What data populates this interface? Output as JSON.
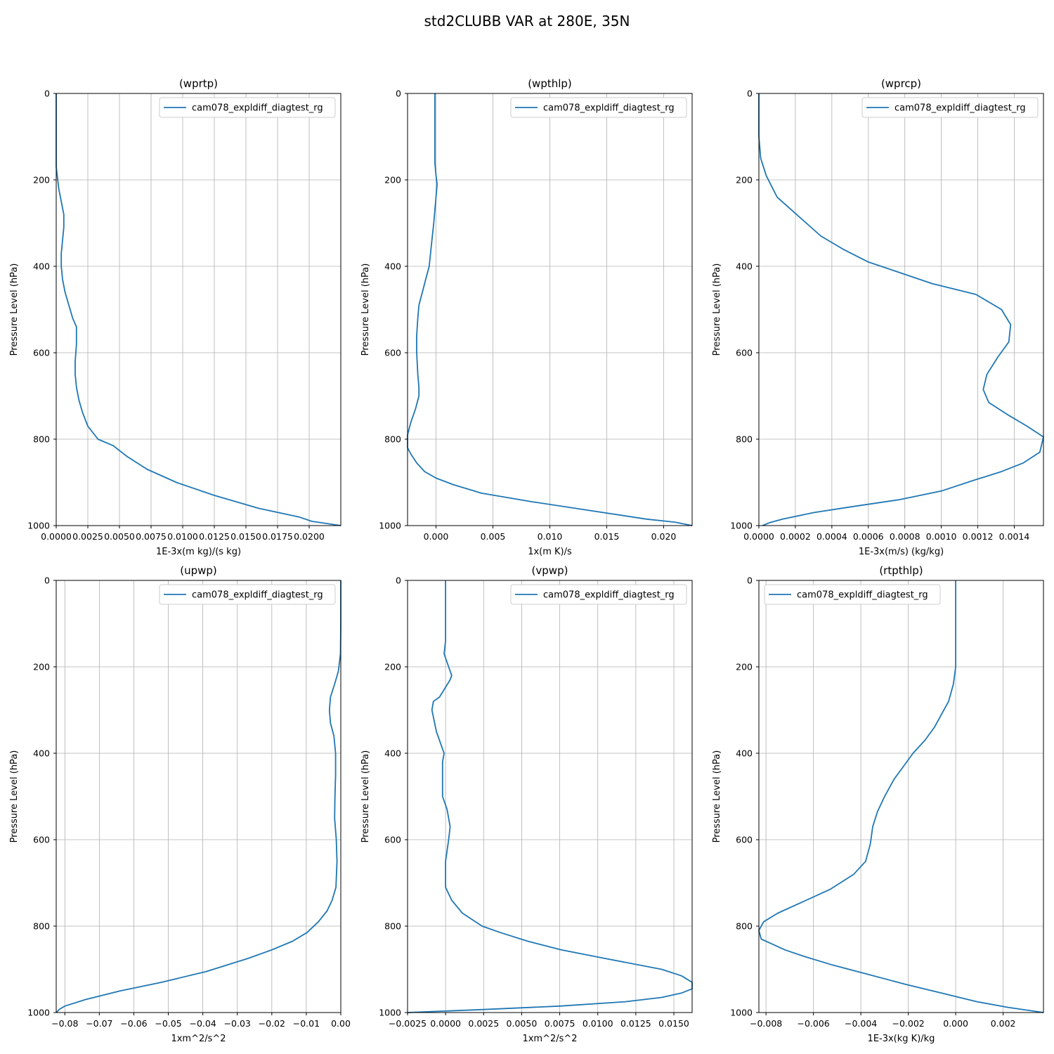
{
  "figure": {
    "title": "std2CLUBB VAR at 280E, 35N"
  },
  "colors": {
    "series": "#1f77b4",
    "grid": "#b0b0b0"
  },
  "chart_data": [
    {
      "type": "line",
      "title": "(wprtp)",
      "xlabel": "1E-3x(m kg)/(s kg)",
      "ylabel": "Pressure Level (hPa)",
      "xlim": [
        0.0,
        0.0225
      ],
      "ylim": [
        1000,
        0
      ],
      "xticks": [
        0.0,
        0.0025,
        0.005,
        0.0075,
        0.01,
        0.0125,
        0.015,
        0.0175,
        0.02
      ],
      "xtick_labels": [
        "0.0000",
        "0.0025",
        "0.0050",
        "0.0075",
        "0.0100",
        "0.0125",
        "0.0150",
        "0.0175",
        "0.0200"
      ],
      "yticks": [
        0,
        200,
        400,
        600,
        800,
        1000
      ],
      "ytick_labels": [
        "0",
        "200",
        "400",
        "600",
        "800",
        "1000"
      ],
      "grid": true,
      "legend_position": "top-right",
      "series": [
        {
          "name": "cam078_expldiff_diagtest_rg",
          "x": [
            0.0,
            0.0,
            0.0,
            0.0002,
            0.0004,
            0.0006,
            0.0006,
            0.0005,
            0.0004,
            0.0004,
            0.0005,
            0.0007,
            0.001,
            0.0013,
            0.0016,
            0.0016,
            0.0015,
            0.0015,
            0.0016,
            0.0018,
            0.0021,
            0.0025,
            0.0033,
            0.0045,
            0.0056,
            0.0072,
            0.0095,
            0.0125,
            0.016,
            0.0192,
            0.0202,
            0.0225
          ],
          "y": [
            0,
            100,
            170,
            220,
            250,
            280,
            310,
            340,
            370,
            400,
            430,
            460,
            490,
            520,
            540,
            580,
            620,
            650,
            680,
            710,
            740,
            770,
            800,
            815,
            840,
            870,
            900,
            930,
            960,
            980,
            990,
            1000
          ]
        }
      ]
    },
    {
      "type": "line",
      "title": "(wpthlp)",
      "xlabel": "1x(m K)/s",
      "ylabel": "Pressure Level (hPa)",
      "xlim": [
        -0.0025,
        0.0225
      ],
      "ylim": [
        1000,
        0
      ],
      "xticks": [
        0.0,
        0.005,
        0.01,
        0.015,
        0.02
      ],
      "xtick_labels": [
        "0.000",
        "0.005",
        "0.010",
        "0.015",
        "0.020"
      ],
      "yticks": [
        0,
        200,
        400,
        600,
        800,
        1000
      ],
      "ytick_labels": [
        "0",
        "200",
        "400",
        "600",
        "800",
        "1000"
      ],
      "grid": true,
      "legend_position": "top-right",
      "series": [
        {
          "name": "cam078_expldiff_diagtest_rg",
          "x": [
            -0.0001,
            -0.0001,
            -0.0001,
            0.0,
            0.0001,
            0.0,
            -0.0001,
            -0.0002,
            -0.0004,
            -0.0006,
            -0.0009,
            -0.0012,
            -0.0015,
            -0.0016,
            -0.0017,
            -0.0017,
            -0.0016,
            -0.0015,
            -0.0015,
            -0.0018,
            -0.0022,
            -0.0025,
            -0.0025,
            -0.0022,
            -0.0017,
            -0.001,
            0.0,
            0.0015,
            0.004,
            0.0085,
            0.0135,
            0.0185,
            0.021,
            0.0225
          ],
          "y": [
            0,
            100,
            160,
            190,
            210,
            240,
            270,
            300,
            350,
            400,
            430,
            460,
            490,
            520,
            560,
            600,
            650,
            680,
            700,
            730,
            760,
            790,
            820,
            835,
            855,
            875,
            890,
            905,
            925,
            945,
            965,
            985,
            992,
            1000
          ]
        }
      ]
    },
    {
      "type": "line",
      "title": "(wprcp)",
      "xlabel": "1E-3x(m/s) (kg/kg)",
      "ylabel": "Pressure Level (hPa)",
      "xlim": [
        0.0,
        0.00156
      ],
      "ylim": [
        1000,
        0
      ],
      "xticks": [
        0.0,
        0.0002,
        0.0004,
        0.0006,
        0.0008,
        0.001,
        0.0012,
        0.0014
      ],
      "xtick_labels": [
        "0.0000",
        "0.0002",
        "0.0004",
        "0.0006",
        "0.0008",
        "0.0010",
        "0.0012",
        "0.0014"
      ],
      "yticks": [
        0,
        200,
        400,
        600,
        800,
        1000
      ],
      "ytick_labels": [
        "0",
        "200",
        "400",
        "600",
        "800",
        "1000"
      ],
      "grid": true,
      "legend_position": "top-right",
      "series": [
        {
          "name": "cam078_expldiff_diagtest_rg",
          "x": [
            0.0,
            0.0,
            1e-05,
            4e-05,
            0.0001,
            0.00018,
            0.00026,
            0.00034,
            0.00046,
            0.0006,
            0.00074,
            0.00095,
            0.00119,
            0.00133,
            0.00138,
            0.00137,
            0.00131,
            0.00125,
            0.00123,
            0.00126,
            0.00137,
            0.00147,
            0.00156,
            0.00154,
            0.00145,
            0.00133,
            0.00118,
            0.001,
            0.00077,
            0.00053,
            0.0003,
            0.00013,
            6e-05,
            2e-05
          ],
          "y": [
            0,
            100,
            150,
            190,
            240,
            270,
            300,
            330,
            360,
            390,
            410,
            440,
            465,
            500,
            535,
            575,
            610,
            650,
            685,
            715,
            745,
            770,
            795,
            830,
            855,
            875,
            895,
            920,
            940,
            955,
            970,
            985,
            993,
            1000
          ]
        }
      ]
    },
    {
      "type": "line",
      "title": "(upwp)",
      "xlabel": "1xm^2/s^2",
      "ylabel": "Pressure Level (hPa)",
      "xlim": [
        -0.0825,
        0.0
      ],
      "ylim": [
        1000,
        0
      ],
      "xticks": [
        -0.08,
        -0.07,
        -0.06,
        -0.05,
        -0.04,
        -0.03,
        -0.02,
        -0.01,
        0.0
      ],
      "xtick_labels": [
        "−0.08",
        "−0.07",
        "−0.06",
        "−0.05",
        "−0.04",
        "−0.03",
        "−0.02",
        "−0.01",
        "0.00"
      ],
      "yticks": [
        0,
        200,
        400,
        600,
        800,
        1000
      ],
      "ytick_labels": [
        "0",
        "200",
        "400",
        "600",
        "800",
        "1000"
      ],
      "grid": true,
      "legend_position": "top-right",
      "series": [
        {
          "name": "cam078_expldiff_diagtest_rg",
          "x": [
            0.0,
            0.0,
            -0.0001,
            -0.0007,
            -0.0018,
            -0.003,
            -0.0033,
            -0.003,
            -0.002,
            -0.0015,
            -0.0015,
            -0.0017,
            -0.0018,
            -0.0013,
            -0.0011,
            -0.0014,
            -0.0025,
            -0.004,
            -0.0065,
            -0.0098,
            -0.014,
            -0.02,
            -0.027,
            -0.039,
            -0.052,
            -0.064,
            -0.074,
            -0.08,
            -0.0815,
            -0.0825
          ],
          "y": [
            0,
            100,
            170,
            210,
            240,
            270,
            300,
            330,
            360,
            400,
            450,
            500,
            550,
            600,
            650,
            710,
            740,
            765,
            790,
            815,
            835,
            855,
            875,
            905,
            930,
            950,
            970,
            985,
            992,
            1000
          ]
        }
      ]
    },
    {
      "type": "line",
      "title": "(vpwp)",
      "xlabel": "1xm^2/s^2",
      "ylabel": "Pressure Level (hPa)",
      "xlim": [
        -0.0025,
        0.0162
      ],
      "ylim": [
        1000,
        0
      ],
      "xticks": [
        -0.0025,
        0.0,
        0.0025,
        0.005,
        0.0075,
        0.01,
        0.0125,
        0.015
      ],
      "xtick_labels": [
        "−0.0025",
        "0.0000",
        "0.0025",
        "0.0050",
        "0.0075",
        "0.0100",
        "0.0125",
        "0.0150"
      ],
      "yticks": [
        0,
        200,
        400,
        600,
        800,
        1000
      ],
      "ytick_labels": [
        "0",
        "200",
        "400",
        "600",
        "800",
        "1000"
      ],
      "grid": true,
      "legend_position": "top-right",
      "series": [
        {
          "name": "cam078_expldiff_diagtest_rg",
          "x": [
            0.0,
            0.0,
            0.0,
            -0.0001,
            0.0002,
            0.0004,
            0.0003,
            -0.0004,
            -0.0008,
            -0.0009,
            -0.0006,
            -0.0003,
            -0.0001,
            -0.0002,
            -0.0002,
            0.0001,
            0.0003,
            0.0002,
            0.0,
            0.0,
            0.0004,
            0.0011,
            0.0024,
            0.0036,
            0.0054,
            0.0076,
            0.0105,
            0.0142,
            0.0155,
            0.0162,
            0.0162,
            0.0155,
            0.0142,
            0.0118,
            0.0075,
            0.0025,
            -0.0025
          ],
          "y": [
            0,
            100,
            140,
            170,
            200,
            220,
            230,
            270,
            280,
            300,
            350,
            380,
            400,
            420,
            500,
            530,
            570,
            600,
            650,
            710,
            740,
            770,
            800,
            815,
            835,
            855,
            875,
            900,
            915,
            930,
            945,
            955,
            965,
            975,
            985,
            993,
            1000
          ]
        }
      ]
    },
    {
      "type": "line",
      "title": "(rtpthlp)",
      "xlabel": "1E-3x(kg K)/kg",
      "ylabel": "Pressure Level (hPa)",
      "xlim": [
        -0.0083,
        0.0037
      ],
      "ylim": [
        1000,
        0
      ],
      "xticks": [
        -0.008,
        -0.006,
        -0.004,
        -0.002,
        0.0,
        0.002
      ],
      "xtick_labels": [
        "−0.008",
        "−0.006",
        "−0.004",
        "−0.002",
        "0.000",
        "0.002"
      ],
      "yticks": [
        0,
        200,
        400,
        600,
        800,
        1000
      ],
      "ytick_labels": [
        "0",
        "200",
        "400",
        "600",
        "800",
        "1000"
      ],
      "grid": true,
      "legend_position": "top-left",
      "series": [
        {
          "name": "cam078_expldiff_diagtest_rg",
          "x": [
            0.0,
            0.0,
            0.0,
            -0.0001,
            -0.0003,
            -0.0006,
            -0.0009,
            -0.0013,
            -0.0018,
            -0.0022,
            -0.0026,
            -0.003,
            -0.0033,
            -0.0035,
            -0.0036,
            -0.0038,
            -0.0043,
            -0.0053,
            -0.0065,
            -0.0075,
            -0.0081,
            -0.0083,
            -0.0082,
            -0.0078,
            -0.0072,
            -0.0064,
            -0.0052,
            -0.0038,
            -0.0021,
            -0.0006,
            0.0009,
            0.0022,
            0.0037
          ],
          "y": [
            0,
            100,
            200,
            240,
            280,
            310,
            340,
            370,
            400,
            430,
            460,
            500,
            535,
            570,
            610,
            650,
            680,
            715,
            745,
            770,
            790,
            810,
            830,
            840,
            855,
            870,
            890,
            910,
            935,
            955,
            975,
            988,
            1000
          ]
        }
      ]
    }
  ]
}
